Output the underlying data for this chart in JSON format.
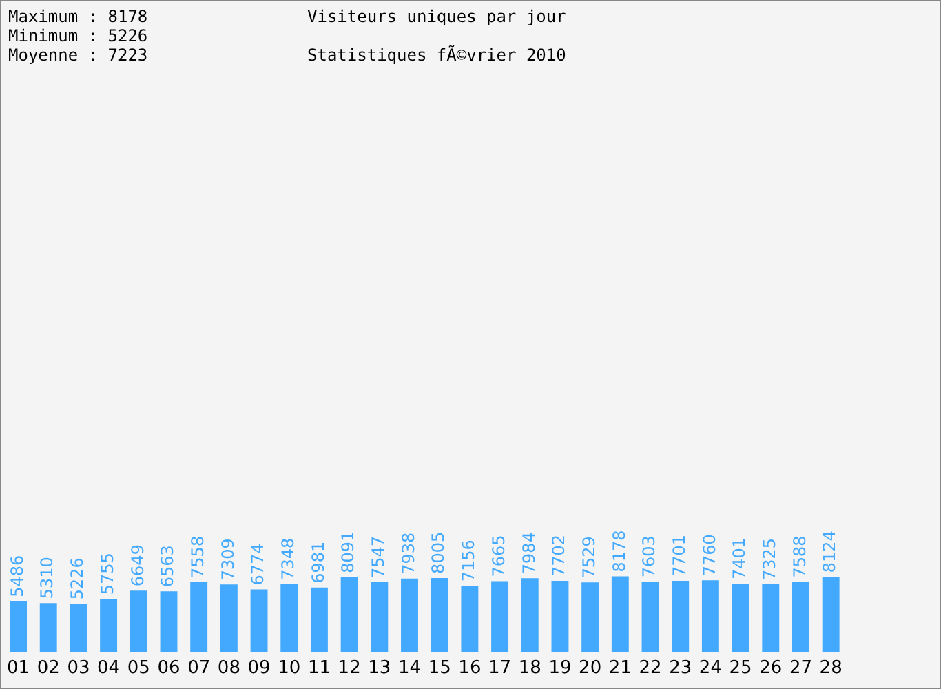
{
  "chart_data": {
    "type": "bar",
    "title": "Visiteurs uniques par jour",
    "subtitle": "Statistiques fÃ©vrier 2010",
    "annotations": [
      "Maximum : 8178",
      "Minimum : 5226",
      "Moyenne : 7223"
    ],
    "categories": [
      "01",
      "02",
      "03",
      "04",
      "05",
      "06",
      "07",
      "08",
      "09",
      "10",
      "11",
      "12",
      "13",
      "14",
      "15",
      "16",
      "17",
      "18",
      "19",
      "20",
      "21",
      "22",
      "23",
      "24",
      "25",
      "26",
      "27",
      "28"
    ],
    "values": [
      5486,
      5310,
      5226,
      5755,
      6649,
      6563,
      7558,
      7309,
      6774,
      7348,
      6981,
      8091,
      7547,
      7938,
      8005,
      7156,
      7665,
      7984,
      7702,
      7529,
      8178,
      7603,
      7701,
      7760,
      7401,
      7325,
      7588,
      8124
    ],
    "color": "#42a9ff",
    "data_labels": true
  }
}
